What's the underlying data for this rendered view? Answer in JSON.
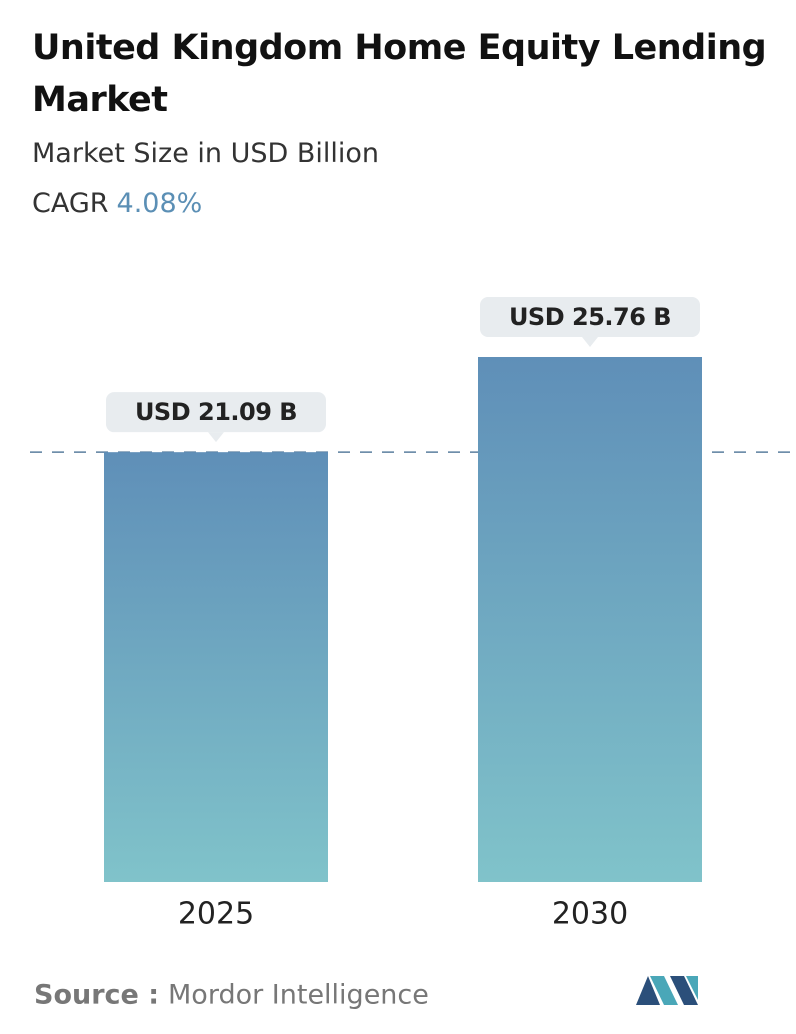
{
  "chart_data": {
    "type": "bar",
    "title": "United Kingdom Home Equity Lending Market",
    "subtitle": "Market Size in USD Billion",
    "cagr_label": "CAGR",
    "cagr_value": "4.08%",
    "categories": [
      "2025",
      "2030"
    ],
    "values": [
      21.09,
      25.76
    ],
    "value_labels": [
      "USD 21.09 B",
      "USD 25.76 B"
    ],
    "color_top": "#5f8fb8",
    "color_bottom": "#80c3ca",
    "source_label": "Source :",
    "source": "Mordor Intelligence"
  }
}
